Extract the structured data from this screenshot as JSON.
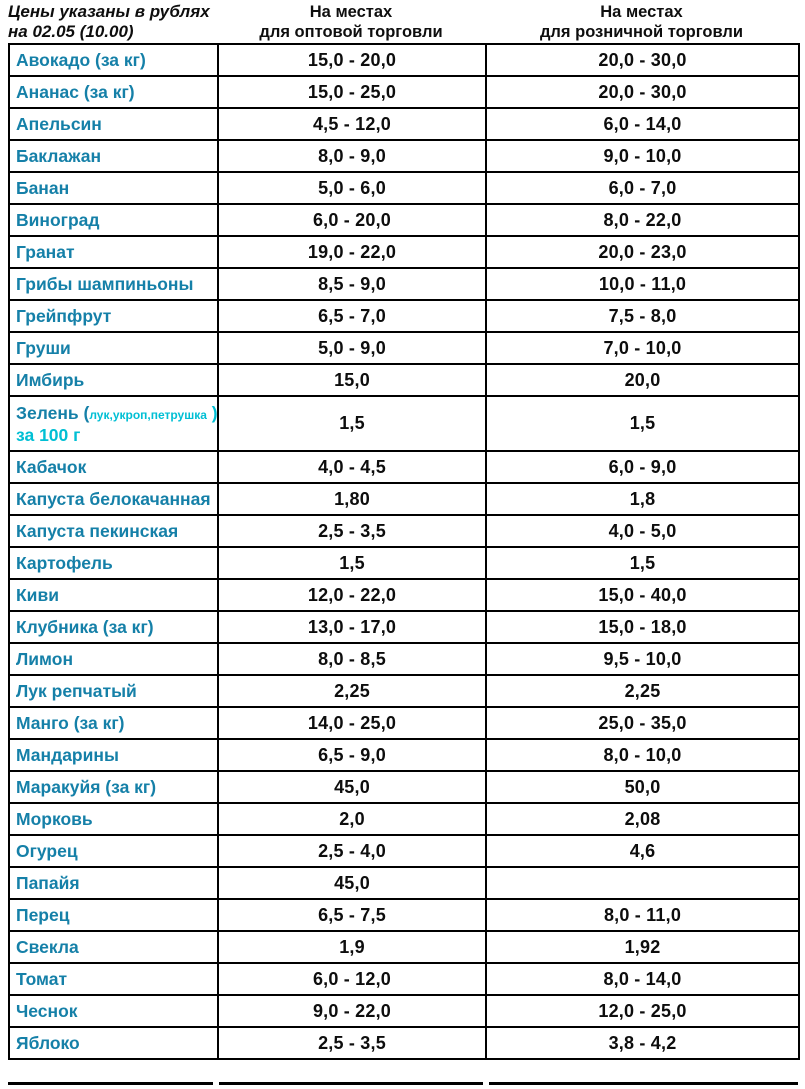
{
  "header": {
    "note": {
      "line1": "Цены указаны в рублях",
      "line2": "на 02.05 (10.00)"
    },
    "columns": [
      {
        "line1": "На местах",
        "line2": "для оптовой торговли"
      },
      {
        "line1": "На местах",
        "line2": "для розничной торговли"
      }
    ]
  },
  "colors": {
    "product_name_teal": "#1580a8",
    "accent_cyan": "#00bfd4",
    "price_text": "#0d0d0d",
    "border": "#000000",
    "background": "#ffffff"
  },
  "table": {
    "rows": [
      {
        "name": "Авокадо (за кг)",
        "wholesale": "15,0 - 20,0",
        "retail": "20,0 - 30,0"
      },
      {
        "name": "Ананас (за кг)",
        "wholesale": "15,0 - 25,0",
        "retail": "20,0 - 30,0"
      },
      {
        "name": "Апельсин",
        "wholesale": "4,5 - 12,0",
        "retail": "6,0 - 14,0"
      },
      {
        "name": "Баклажан",
        "wholesale": "8,0 - 9,0",
        "retail": "9,0 - 10,0"
      },
      {
        "name": "Банан",
        "wholesale": "5,0 - 6,0",
        "retail": "6,0 - 7,0"
      },
      {
        "name": "Виноград",
        "wholesale": "6,0 - 20,0",
        "retail": "8,0 - 22,0"
      },
      {
        "name": "Гранат",
        "wholesale": "19,0 - 22,0",
        "retail": "20,0 - 23,0"
      },
      {
        "name": "Грибы шампиньоны",
        "wholesale": "8,5 - 9,0",
        "retail": "10,0 - 11,0"
      },
      {
        "name": "Грейпфрут",
        "wholesale": "6,5 - 7,0",
        "retail": "7,5 - 8,0"
      },
      {
        "name": "Груши",
        "wholesale": "5,0 - 9,0",
        "retail": "7,0 - 10,0"
      },
      {
        "name": "Имбирь",
        "wholesale": "15,0",
        "retail": "20,0"
      },
      {
        "special": true,
        "name_main": "Зелень (",
        "name_small": "лук,укроп,петрушка",
        "name_close": " ),",
        "name_line2": "за 100 г",
        "wholesale": "1,5",
        "retail": "1,5"
      },
      {
        "name": "Кабачок",
        "wholesale": "4,0 - 4,5",
        "retail": "6,0 - 9,0"
      },
      {
        "name": "Капуста белокачанная",
        "wholesale": "1,80",
        "retail": "1,8"
      },
      {
        "name": "Капуста пекинская",
        "wholesale": "2,5 - 3,5",
        "retail": "4,0 - 5,0"
      },
      {
        "name": "Картофель",
        "wholesale": "1,5",
        "retail": "1,5"
      },
      {
        "name": "Киви",
        "wholesale": "12,0 - 22,0",
        "retail": "15,0 - 40,0"
      },
      {
        "name": "Клубника (за кг)",
        "wholesale": "13,0 - 17,0",
        "retail": "15,0 - 18,0"
      },
      {
        "name": "Лимон",
        "wholesale": "8,0 - 8,5",
        "retail": "9,5 - 10,0"
      },
      {
        "name": "Лук репчатый",
        "wholesale": "2,25",
        "retail": "2,25"
      },
      {
        "name": "Манго (за кг)",
        "wholesale": "14,0 - 25,0",
        "retail": "25,0 - 35,0"
      },
      {
        "name": "Мандарины",
        "wholesale": "6,5 - 9,0",
        "retail": "8,0 - 10,0"
      },
      {
        "name": "Маракуйя (за кг)",
        "wholesale": "45,0",
        "retail": "50,0"
      },
      {
        "name": "Морковь",
        "wholesale": "2,0",
        "retail": "2,08"
      },
      {
        "name": "Огурец",
        "wholesale": "2,5 - 4,0",
        "retail": "4,6"
      },
      {
        "name": "Папайя",
        "wholesale": "45,0",
        "retail": ""
      },
      {
        "name": "Перец",
        "wholesale": "6,5 - 7,5",
        "retail": "8,0 - 11,0"
      },
      {
        "name": "Свекла",
        "wholesale": "1,9",
        "retail": "1,92"
      },
      {
        "name": "Томат",
        "wholesale": "6,0 - 12,0",
        "retail": "8,0 - 14,0"
      },
      {
        "name": "Чеснок",
        "wholesale": "9,0 - 22,0",
        "retail": "12,0 - 25,0"
      },
      {
        "name": "Яблоко",
        "wholesale": "2,5 - 3,5",
        "retail": "3,8 - 4,2"
      }
    ]
  }
}
